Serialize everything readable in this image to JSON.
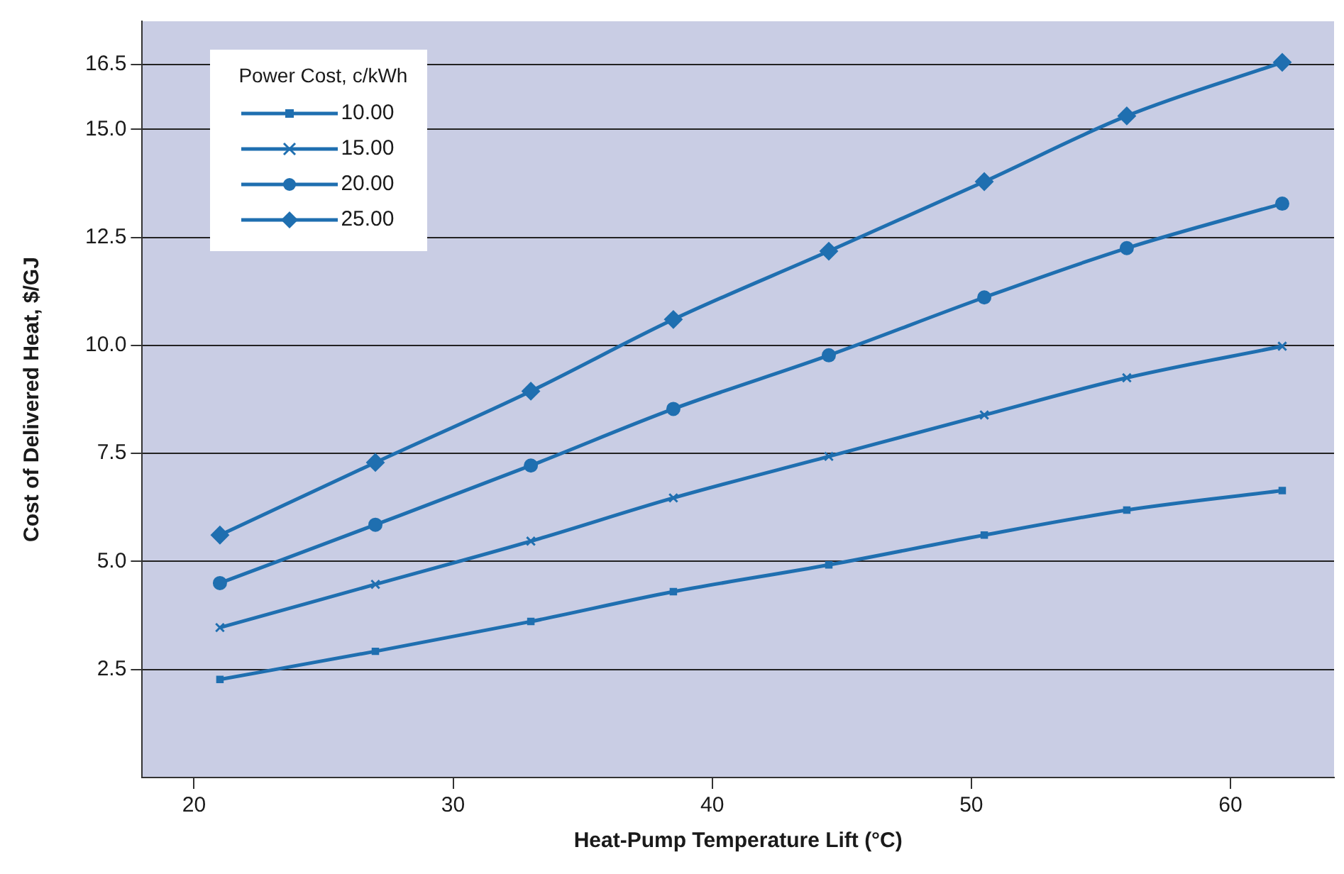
{
  "chart_data": {
    "type": "line",
    "xlabel": "Heat-Pump Temperature Lift (°C)",
    "ylabel": "Cost of Delivered Heat, $/GJ",
    "legend_title": "Power Cost, c/kWh",
    "legend": "top left",
    "grid": "y",
    "line_style": "solid",
    "x": [
      21,
      27,
      33,
      38.5,
      44.5,
      50.5,
      56,
      62
    ],
    "xlim": [
      18,
      64
    ],
    "xticks": [
      20,
      30,
      40,
      50,
      60
    ],
    "ylim": [
      0,
      17.5
    ],
    "yticks": [
      {
        "value": 2.5,
        "label": "2.5"
      },
      {
        "value": 5,
        "label": "5.0"
      },
      {
        "value": 7.5,
        "label": "7.5"
      },
      {
        "value": 10,
        "label": "10.0"
      },
      {
        "value": 12.5,
        "label": "12.5"
      },
      {
        "value": 15,
        "label": "15.0"
      },
      16.5
    ],
    "series": [
      {
        "name": "10.00",
        "color": "#1f6fb0",
        "marker": "square",
        "values": [
          2.27,
          2.92,
          3.61,
          4.3,
          4.92,
          5.61,
          6.19,
          6.64
        ]
      },
      {
        "name": "15.00",
        "color": "#1f6fb0",
        "marker": "cross",
        "values": [
          3.47,
          4.47,
          5.47,
          6.47,
          7.43,
          8.39,
          9.25,
          9.98
        ]
      },
      {
        "name": "20.00",
        "color": "#1f6fb0",
        "marker": "circle",
        "values": [
          4.5,
          5.85,
          7.22,
          8.53,
          9.77,
          11.11,
          12.25,
          13.28
        ]
      },
      {
        "name": "25.00",
        "color": "#1f6fb0",
        "marker": "diamond",
        "values": [
          5.61,
          7.29,
          8.94,
          10.6,
          12.18,
          13.79,
          15.31,
          16.55
        ]
      }
    ]
  }
}
